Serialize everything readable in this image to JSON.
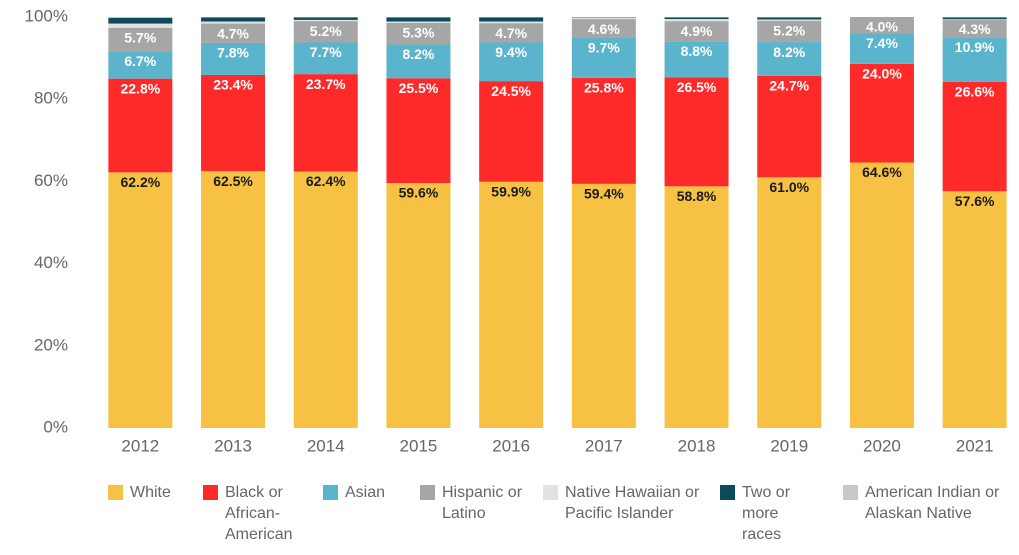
{
  "chart_data": {
    "type": "stacked_bar",
    "categories": [
      "2012",
      "2013",
      "2014",
      "2015",
      "2016",
      "2017",
      "2018",
      "2019",
      "2020",
      "2021"
    ],
    "ylim": [
      0,
      100
    ],
    "yticks": [
      {
        "value": 0,
        "label": "0%"
      },
      {
        "value": 20,
        "label": "20%"
      },
      {
        "value": 40,
        "label": "40%"
      },
      {
        "value": 60,
        "label": "60%"
      },
      {
        "value": 80,
        "label": "80%"
      },
      {
        "value": 100,
        "label": "100%"
      }
    ],
    "series": [
      {
        "name": "White",
        "color": "#f7c244",
        "values": [
          62.2,
          62.5,
          62.4,
          59.6,
          59.9,
          59.4,
          58.8,
          61.0,
          64.6,
          57.6
        ],
        "value_labels": [
          "62.2%",
          "62.5%",
          "62.4%",
          "59.6%",
          "59.9%",
          "59.4%",
          "58.8%",
          "61.0%",
          "64.6%",
          "57.6%"
        ]
      },
      {
        "name": "Black or African-American",
        "color": "#fe2a2a",
        "values": [
          22.8,
          23.4,
          23.7,
          25.5,
          24.5,
          25.8,
          26.5,
          24.7,
          24.0,
          26.6
        ],
        "value_labels": [
          "22.8%",
          "23.4%",
          "23.7%",
          "25.5%",
          "24.5%",
          "25.8%",
          "26.5%",
          "24.7%",
          "24.0%",
          "26.6%"
        ]
      },
      {
        "name": "Asian",
        "color": "#5ab4cc",
        "values": [
          6.7,
          7.8,
          7.7,
          8.2,
          9.4,
          9.7,
          8.8,
          8.2,
          7.4,
          10.9
        ],
        "value_labels": [
          "6.7%",
          "7.8%",
          "7.7%",
          "8.2%",
          "9.4%",
          "9.7%",
          "8.8%",
          "8.2%",
          "7.4%",
          "10.9%"
        ]
      },
      {
        "name": "Hispanic or Latino",
        "color": "#a6a6a6",
        "values": [
          5.7,
          4.7,
          5.2,
          5.3,
          4.7,
          4.6,
          4.9,
          5.2,
          4.0,
          4.3
        ],
        "value_labels": [
          "5.7%",
          "4.7%",
          "5.2%",
          "5.3%",
          "4.7%",
          "4.6%",
          "4.9%",
          "5.2%",
          "4.0%",
          "4.3%"
        ]
      },
      {
        "name": "Native Hawaiian or Pacific Islander",
        "color": "#e2e2e2",
        "values": [
          1.0,
          0.5,
          0.3,
          0.3,
          0.4,
          0.3,
          0.5,
          0.3,
          0,
          0.1
        ]
      },
      {
        "name": "Two or more races",
        "color": "#0e4b5a",
        "values": [
          1.4,
          1.0,
          0.6,
          1.0,
          1.0,
          0.1,
          0.4,
          0.5,
          0,
          0.4
        ]
      },
      {
        "name": "American Indian or Alaskan Native",
        "color": "#c8c8c8",
        "values": [
          0.2,
          0.1,
          0.1,
          0.1,
          0.1,
          0.1,
          0.1,
          0.1,
          0,
          0.1
        ]
      }
    ]
  }
}
